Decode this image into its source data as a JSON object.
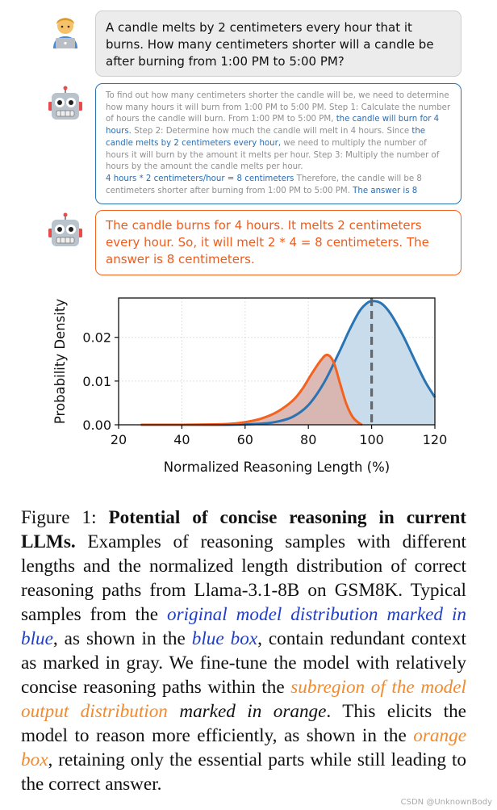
{
  "question": {
    "text": "A candle melts by 2 centimeters every hour that it burns. How many centimeters shorter will a candle be after burning from 1:00 PM to 5:00 PM?"
  },
  "blue_box": {
    "seg1": "To find out how many centimeters shorter the candle will be, we need to determine how many hours it will burn from 1:00 PM to 5:00 PM. Step 1: Calculate the number of hours the candle will burn. From 1:00 PM to 5:00 PM, ",
    "hl1": "the candle will burn for 4 hours.",
    "seg2": " Step 2: Determine how much the candle will melt in 4 hours. Since ",
    "hl2": "the candle melts by 2 centimeters every hour,",
    "seg3": " we need to multiply the number of hours it will burn by the amount it melts per hour. Step 3: Multiply the number of hours by the amount the candle melts per hour.",
    "hl3": "4 hours * 2 centimeters/hour = 8 centimeters",
    "seg4": " Therefore, the candle will be 8 centimeters shorter after burning from 1:00 PM to 5:00 PM. ",
    "hl4": "The answer is 8"
  },
  "orange_box": {
    "text": "The candle burns for 4 hours. It melts 2 centimeters every hour. So, it will melt 2 * 4 = 8 centimeters. The answer is 8 centimeters."
  },
  "icons": {
    "user": "user-technologist-icon",
    "robot": "robot-icon"
  },
  "colors": {
    "blue": "#2b74b3",
    "orange": "#f3631f",
    "blue_fill": "#c9dcec",
    "orange_fill": "#d9b3ad"
  },
  "chart_data": {
    "type": "area",
    "xlabel": "Normalized Reasoning Length (%)",
    "ylabel": "Probability Density",
    "xlim": [
      20,
      120
    ],
    "ylim": [
      0,
      0.029
    ],
    "xticks": [
      20,
      40,
      60,
      80,
      100,
      120
    ],
    "yticks": [
      0.0,
      0.01,
      0.02
    ],
    "ytick_labels": [
      "0.00",
      "0.01",
      "0.02"
    ],
    "grid": true,
    "vline": {
      "x": 100,
      "style": "dashed"
    },
    "series": [
      {
        "color": "blue",
        "x": [
          27,
          40,
          50,
          60,
          66,
          70,
          75,
          80,
          85,
          90,
          93,
          96,
          98,
          100,
          103,
          106,
          110,
          114,
          117,
          120
        ],
        "y": [
          0.0,
          0.0,
          0.0,
          0.0001,
          0.0003,
          0.0007,
          0.0018,
          0.0045,
          0.0097,
          0.017,
          0.0217,
          0.0258,
          0.0275,
          0.0283,
          0.0278,
          0.0254,
          0.0203,
          0.0142,
          0.0098,
          0.0063
        ]
      },
      {
        "color": "orange",
        "x": [
          27,
          40,
          50,
          55,
          60,
          65,
          70,
          75,
          78,
          81,
          84,
          86,
          88,
          90,
          92,
          94,
          96,
          97
        ],
        "y": [
          0.0,
          0.0,
          0.0001,
          0.0002,
          0.0006,
          0.0014,
          0.0029,
          0.0055,
          0.0081,
          0.0116,
          0.0148,
          0.016,
          0.0143,
          0.0095,
          0.0048,
          0.0018,
          0.0004,
          0.0
        ]
      }
    ]
  },
  "caption": {
    "prefix": "Figure 1: ",
    "title": "Potential of concise reasoning in current LLMs.",
    "t1": " Examples of reasoning samples with different lengths and the normalized length distribution of correct reasoning paths from Llama-3.1-8B on GSM8K. Typical samples from the ",
    "blue1": "original model distribution marked in blue",
    "t2": ", as shown in the ",
    "blue2": "blue box",
    "t3": ", contain redundant context as marked in gray. We fine-tune the model with relatively concise reasoning paths within the ",
    "orange1": "subregion of the model output distribution",
    "orange1_tail": " marked in orange",
    "t4": ". This elicits the model to reason more efficiently, as shown in the ",
    "orange2": "orange box",
    "t5": ", retaining only the essential parts while still leading to the correct answer."
  },
  "watermark": "CSDN @UnknownBody"
}
